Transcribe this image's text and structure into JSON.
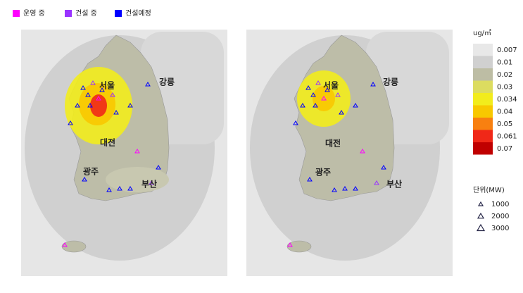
{
  "legend": {
    "items": [
      {
        "label": "운영 중",
        "color": "#ff00ff"
      },
      {
        "label": "건설 중",
        "color": "#9933ff"
      },
      {
        "label": "건설예정",
        "color": "#0000ff"
      }
    ]
  },
  "maps": [
    {
      "cities": [
        {
          "label": "서울"
        },
        {
          "label": "강릉"
        },
        {
          "label": "대전"
        },
        {
          "label": "광주"
        },
        {
          "label": "부산"
        }
      ]
    },
    {
      "cities": [
        {
          "label": "서울"
        },
        {
          "label": "강릉"
        },
        {
          "label": "대전"
        },
        {
          "label": "광주"
        },
        {
          "label": "부산"
        }
      ]
    }
  ],
  "colorbar": {
    "unit": "ug/㎥",
    "levels": [
      {
        "label": "0.007",
        "color": "#e8e8e8"
      },
      {
        "label": "0.01",
        "color": "#d0d0d0"
      },
      {
        "label": "0.02",
        "color": "#bdbda4"
      },
      {
        "label": "0.03",
        "color": "#dcdc60"
      },
      {
        "label": "0.034",
        "color": "#f2ec1c"
      },
      {
        "label": "0.04",
        "color": "#f8c800"
      },
      {
        "label": "0.05",
        "color": "#f88010"
      },
      {
        "label": "0.061",
        "color": "#f02818"
      },
      {
        "label": "0.07",
        "color": "#c00000"
      }
    ]
  },
  "size_legend": {
    "title": "단위(MW)",
    "items": [
      "1000",
      "2000",
      "3000"
    ]
  }
}
